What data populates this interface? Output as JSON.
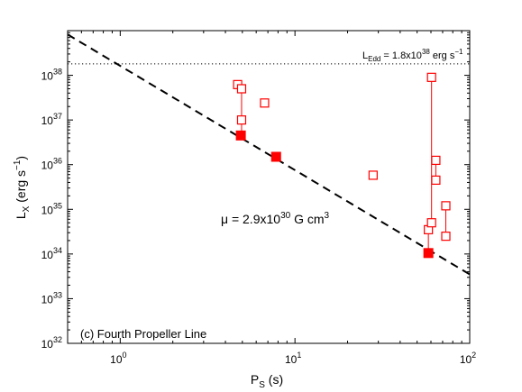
{
  "chart_data": {
    "type": "scatter",
    "title": "",
    "panel_label": "(c) Fourth Propeller Line",
    "xlabel": {
      "main": "P",
      "sub": "S",
      "suffix": " (s)"
    },
    "ylabel": {
      "main": "L",
      "sub": "X",
      "pre": " (erg s",
      "sup": "−1",
      "post": ")"
    },
    "xscale": "log",
    "yscale": "log",
    "xlim": [
      0.5,
      100
    ],
    "ylim": [
      1e+32,
      1e+39
    ],
    "grid": false,
    "x_ticks": [
      {
        "value": 1,
        "base": "10",
        "exp": "0"
      },
      {
        "value": 10,
        "base": "10",
        "exp": "1"
      },
      {
        "value": 100,
        "base": "10",
        "exp": "2"
      }
    ],
    "y_ticks": [
      {
        "value": 1e+32,
        "base": "10",
        "exp": "32"
      },
      {
        "value": 1e+33,
        "base": "10",
        "exp": "33"
      },
      {
        "value": 1e+34,
        "base": "10",
        "exp": "34"
      },
      {
        "value": 1e+35,
        "base": "10",
        "exp": "35"
      },
      {
        "value": 1e+36,
        "base": "10",
        "exp": "36"
      },
      {
        "value": 1e+37,
        "base": "10",
        "exp": "37"
      },
      {
        "value": 1e+38,
        "base": "10",
        "exp": "38"
      }
    ],
    "eddington_line": {
      "y": 1.8e+38,
      "label": {
        "main": "L",
        "sub": "Edd",
        "text1": " = 1.8x10",
        "sup1": "38",
        "text2": " erg s",
        "sup2": "−1"
      }
    },
    "propeller_line": {
      "style": "dashed",
      "points": [
        [
          0.5,
          8.2e+38
        ],
        [
          100,
          3.5e+33
        ]
      ],
      "label": {
        "text1": "μ = 2.9x10",
        "sup1": "30",
        "text2": " G cm",
        "sup2": "3"
      }
    },
    "marker_color": "#ff0000",
    "filled_points": [
      {
        "x": 4.9,
        "y": 4.5e+36
      },
      {
        "x": 7.8,
        "y": 1.5e+36
      },
      {
        "x": 58,
        "y": 1.05e+34
      }
    ],
    "open_points": [
      {
        "x": 4.7,
        "y": 6.2e+37
      },
      {
        "x": 4.95,
        "y": 5e+37
      },
      {
        "x": 4.95,
        "y": 1e+37
      },
      {
        "x": 6.7,
        "y": 2.4e+37
      },
      {
        "x": 28,
        "y": 5.8e+35
      },
      {
        "x": 58,
        "y": 3.5e+34
      },
      {
        "x": 60.5,
        "y": 9e+37
      },
      {
        "x": 60.5,
        "y": 5e+34
      },
      {
        "x": 64,
        "y": 1.25e+36
      },
      {
        "x": 64,
        "y": 4.5e+35
      },
      {
        "x": 73,
        "y": 1.2e+35
      },
      {
        "x": 73,
        "y": 2.5e+34
      }
    ],
    "range_lines": [
      {
        "x": 4.95,
        "y_min": 4.5e+36,
        "y_max": 5e+37
      },
      {
        "x1": 4.7,
        "y1": 6.2e+37,
        "x2": 4.95,
        "y2": 5e+37
      },
      {
        "x": 60.5,
        "y_min": 5e+34,
        "y_max": 9e+37
      },
      {
        "x1": 58,
        "y1": 1.05e+34,
        "x2": 58,
        "y2": 3.5e+34
      },
      {
        "x1": 58,
        "y1": 3.5e+34,
        "x2": 60.5,
        "y2": 5e+34
      },
      {
        "x": 64,
        "y_min": 4.5e+35,
        "y_max": 1.25e+36
      },
      {
        "x": 73,
        "y_min": 2.5e+34,
        "y_max": 1.2e+35
      }
    ]
  }
}
